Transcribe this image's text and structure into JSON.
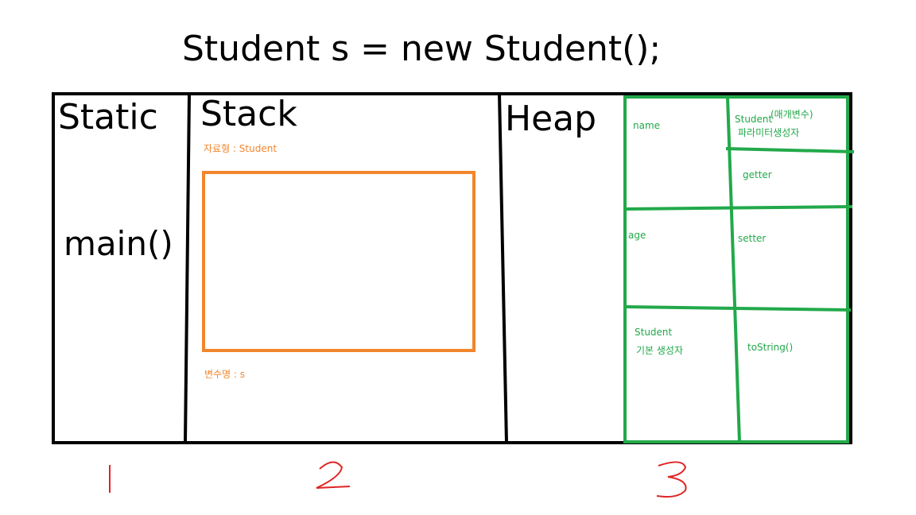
{
  "title": "Student s = new Student();",
  "sections": {
    "static": {
      "label": "Static",
      "content": "main()"
    },
    "stack": {
      "label": "Stack",
      "type_label": "자료형 : Student",
      "var_label": "변수명 : s"
    },
    "heap": {
      "label": "Heap",
      "cells": {
        "name": "name",
        "param_ctor_line1": "Student",
        "param_ctor_paren": "(매개변수)",
        "param_ctor_line2": "파라미터생성자",
        "getter": "getter",
        "age": "age",
        "setter": "setter",
        "default_ctor_line1": "Student",
        "default_ctor_line2": "기본 생성자",
        "tostring": "toString()"
      }
    }
  },
  "numbers": [
    "1",
    "2",
    "3"
  ],
  "colors": {
    "outline": "#000000",
    "stack_box": "#f2862c",
    "heap_grid": "#22a94a",
    "numbers": "#e02424"
  }
}
